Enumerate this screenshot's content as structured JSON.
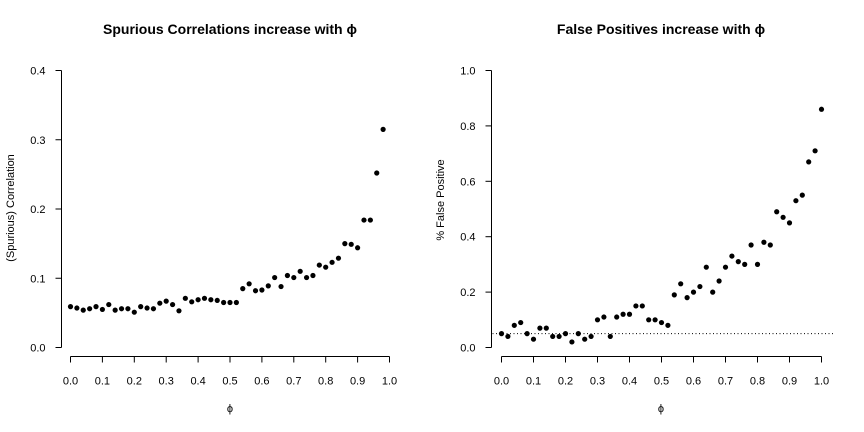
{
  "chart_data": [
    {
      "type": "scatter",
      "title": "Spurious Correlations increase with ϕ",
      "xlabel": "ϕ",
      "ylabel": "(Spurious) Correlation",
      "xlim": [
        0,
        1
      ],
      "ylim": [
        0,
        0.4
      ],
      "x_ticks": [
        "0.0",
        "0.1",
        "0.2",
        "0.3",
        "0.4",
        "0.5",
        "0.6",
        "0.7",
        "0.8",
        "0.9",
        "1.0"
      ],
      "y_ticks": [
        "0.0",
        "0.1",
        "0.2",
        "0.3",
        "0.4"
      ],
      "point_color": "#000000",
      "x": [
        0.0,
        0.02,
        0.04,
        0.06,
        0.08,
        0.1,
        0.12,
        0.14,
        0.16,
        0.18,
        0.2,
        0.22,
        0.24,
        0.26,
        0.28,
        0.3,
        0.32,
        0.34,
        0.36,
        0.38,
        0.4,
        0.42,
        0.44,
        0.46,
        0.48,
        0.5,
        0.52,
        0.54,
        0.56,
        0.58,
        0.6,
        0.62,
        0.64,
        0.66,
        0.68,
        0.7,
        0.72,
        0.74,
        0.76,
        0.78,
        0.8,
        0.82,
        0.84,
        0.86,
        0.88,
        0.9,
        0.92,
        0.94,
        0.96,
        0.98
      ],
      "y": [
        0.059,
        0.057,
        0.054,
        0.056,
        0.059,
        0.055,
        0.062,
        0.054,
        0.056,
        0.056,
        0.051,
        0.059,
        0.057,
        0.056,
        0.064,
        0.067,
        0.062,
        0.053,
        0.071,
        0.066,
        0.069,
        0.071,
        0.069,
        0.068,
        0.065,
        0.065,
        0.065,
        0.085,
        0.092,
        0.082,
        0.083,
        0.089,
        0.101,
        0.088,
        0.104,
        0.101,
        0.11,
        0.101,
        0.104,
        0.119,
        0.116,
        0.123,
        0.129,
        0.15,
        0.149,
        0.144,
        0.184,
        0.184,
        0.252,
        0.315
      ]
    },
    {
      "type": "scatter",
      "title": "False Positives increase with ϕ",
      "xlabel": "ϕ",
      "ylabel": "% False Positive",
      "xlim": [
        0,
        1
      ],
      "ylim": [
        0,
        1
      ],
      "x_ticks": [
        "0.0",
        "0.1",
        "0.2",
        "0.3",
        "0.4",
        "0.5",
        "0.6",
        "0.7",
        "0.8",
        "0.9",
        "1.0"
      ],
      "y_ticks": [
        "0.0",
        "0.2",
        "0.4",
        "0.6",
        "0.8",
        "1.0"
      ],
      "point_color": "#000000",
      "reference_line_y": 0.05,
      "reference_line_style": "dotted",
      "x": [
        0.0,
        0.02,
        0.04,
        0.06,
        0.08,
        0.1,
        0.12,
        0.14,
        0.16,
        0.18,
        0.2,
        0.22,
        0.24,
        0.26,
        0.28,
        0.3,
        0.32,
        0.34,
        0.36,
        0.38,
        0.4,
        0.42,
        0.44,
        0.46,
        0.48,
        0.5,
        0.52,
        0.54,
        0.56,
        0.58,
        0.6,
        0.62,
        0.64,
        0.66,
        0.68,
        0.7,
        0.72,
        0.74,
        0.76,
        0.78,
        0.8,
        0.82,
        0.84,
        0.86,
        0.88,
        0.9,
        0.92,
        0.94,
        0.96,
        0.98,
        1.0
      ],
      "y": [
        0.05,
        0.04,
        0.08,
        0.09,
        0.05,
        0.03,
        0.07,
        0.07,
        0.04,
        0.04,
        0.05,
        0.02,
        0.05,
        0.03,
        0.04,
        0.1,
        0.11,
        0.04,
        0.11,
        0.12,
        0.12,
        0.15,
        0.15,
        0.1,
        0.1,
        0.09,
        0.08,
        0.19,
        0.23,
        0.18,
        0.2,
        0.22,
        0.29,
        0.2,
        0.24,
        0.29,
        0.33,
        0.31,
        0.3,
        0.37,
        0.3,
        0.38,
        0.37,
        0.49,
        0.47,
        0.45,
        0.53,
        0.55,
        0.67,
        0.71,
        0.86
      ]
    }
  ]
}
